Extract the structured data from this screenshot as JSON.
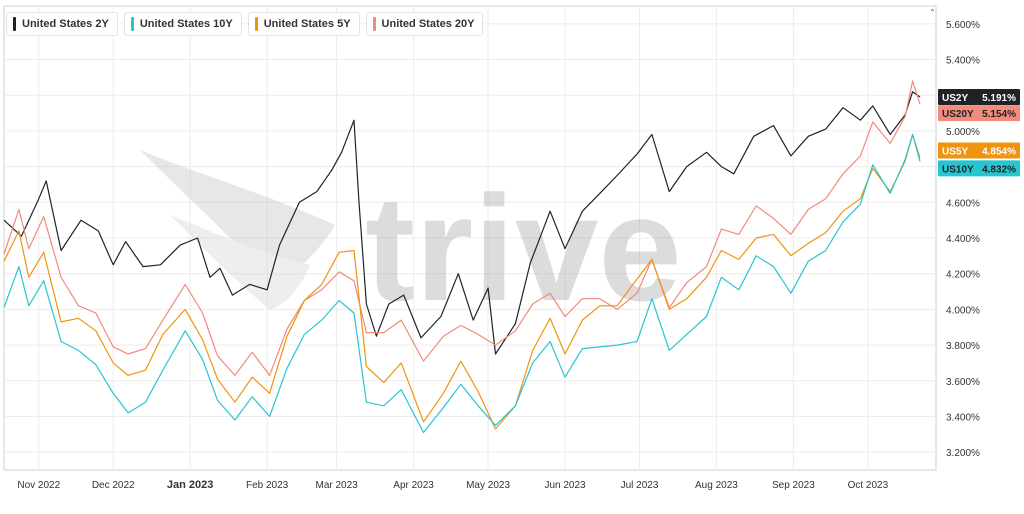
{
  "chart_data": {
    "type": "line",
    "ylim": [
      3.1,
      5.7
    ],
    "y_ticks": [
      "3.200%",
      "3.400%",
      "3.600%",
      "3.800%",
      "4.000%",
      "4.200%",
      "4.400%",
      "4.600%",
      "4.800%",
      "5.000%",
      "5.200%",
      "5.400%",
      "5.600%"
    ],
    "y_tick_values": [
      3.2,
      3.4,
      3.6,
      3.8,
      4.0,
      4.2,
      4.4,
      4.6,
      4.8,
      5.0,
      5.2,
      5.4,
      5.6
    ],
    "x_ticks": [
      "Nov 2022",
      "Dec 2022",
      "Jan 2023",
      "Feb 2023",
      "Mar 2023",
      "Apr 2023",
      "May 2023",
      "Jun 2023",
      "Jul 2023",
      "Aug 2023",
      "Sep 2023",
      "Oct 2023"
    ],
    "x_range": [
      "2022-10-18",
      "2023-10-22"
    ],
    "grid": true,
    "legend_position": "top-left",
    "watermark": "trive",
    "series": [
      {
        "name": "United States 2Y",
        "tag": "US2Y",
        "last_label": "5.191%",
        "color": "#1f2328",
        "points": [
          [
            "2022-10-18",
            4.5
          ],
          [
            "2022-10-25",
            4.41
          ],
          [
            "2022-11-01",
            4.62
          ],
          [
            "2022-11-04",
            4.72
          ],
          [
            "2022-11-10",
            4.33
          ],
          [
            "2022-11-18",
            4.5
          ],
          [
            "2022-11-25",
            4.44
          ],
          [
            "2022-12-01",
            4.25
          ],
          [
            "2022-12-06",
            4.38
          ],
          [
            "2022-12-13",
            4.24
          ],
          [
            "2022-12-20",
            4.25
          ],
          [
            "2022-12-28",
            4.36
          ],
          [
            "2023-01-04",
            4.4
          ],
          [
            "2023-01-09",
            4.18
          ],
          [
            "2023-01-13",
            4.23
          ],
          [
            "2023-01-18",
            4.08
          ],
          [
            "2023-01-25",
            4.14
          ],
          [
            "2023-02-01",
            4.11
          ],
          [
            "2023-02-06",
            4.36
          ],
          [
            "2023-02-14",
            4.6
          ],
          [
            "2023-02-21",
            4.66
          ],
          [
            "2023-02-27",
            4.78
          ],
          [
            "2023-03-03",
            4.88
          ],
          [
            "2023-03-08",
            5.06
          ],
          [
            "2023-03-10",
            4.6
          ],
          [
            "2023-03-13",
            4.03
          ],
          [
            "2023-03-17",
            3.85
          ],
          [
            "2023-03-22",
            4.03
          ],
          [
            "2023-03-28",
            4.08
          ],
          [
            "2023-04-04",
            3.84
          ],
          [
            "2023-04-12",
            3.96
          ],
          [
            "2023-04-19",
            4.2
          ],
          [
            "2023-04-25",
            3.94
          ],
          [
            "2023-05-01",
            4.12
          ],
          [
            "2023-05-04",
            3.75
          ],
          [
            "2023-05-12",
            3.92
          ],
          [
            "2023-05-18",
            4.26
          ],
          [
            "2023-05-26",
            4.55
          ],
          [
            "2023-06-01",
            4.34
          ],
          [
            "2023-06-08",
            4.55
          ],
          [
            "2023-06-15",
            4.65
          ],
          [
            "2023-06-22",
            4.75
          ],
          [
            "2023-06-30",
            4.87
          ],
          [
            "2023-07-06",
            4.98
          ],
          [
            "2023-07-13",
            4.66
          ],
          [
            "2023-07-20",
            4.8
          ],
          [
            "2023-07-28",
            4.88
          ],
          [
            "2023-08-03",
            4.8
          ],
          [
            "2023-08-08",
            4.76
          ],
          [
            "2023-08-16",
            4.97
          ],
          [
            "2023-08-24",
            5.03
          ],
          [
            "2023-08-31",
            4.86
          ],
          [
            "2023-09-07",
            4.97
          ],
          [
            "2023-09-14",
            5.01
          ],
          [
            "2023-09-21",
            5.13
          ],
          [
            "2023-09-28",
            5.06
          ],
          [
            "2023-10-03",
            5.14
          ],
          [
            "2023-10-10",
            4.98
          ],
          [
            "2023-10-16",
            5.09
          ],
          [
            "2023-10-19",
            5.22
          ],
          [
            "2023-10-22",
            5.19
          ]
        ]
      },
      {
        "name": "United States 10Y",
        "tag": "US10Y",
        "last_label": "4.832%",
        "color": "#26c6d0",
        "points": [
          [
            "2022-10-18",
            4.01
          ],
          [
            "2022-10-24",
            4.24
          ],
          [
            "2022-10-28",
            4.02
          ],
          [
            "2022-11-03",
            4.16
          ],
          [
            "2022-11-10",
            3.82
          ],
          [
            "2022-11-17",
            3.77
          ],
          [
            "2022-11-24",
            3.69
          ],
          [
            "2022-12-01",
            3.53
          ],
          [
            "2022-12-07",
            3.42
          ],
          [
            "2022-12-14",
            3.48
          ],
          [
            "2022-12-21",
            3.66
          ],
          [
            "2022-12-30",
            3.88
          ],
          [
            "2023-01-06",
            3.72
          ],
          [
            "2023-01-12",
            3.49
          ],
          [
            "2023-01-19",
            3.38
          ],
          [
            "2023-01-26",
            3.51
          ],
          [
            "2023-02-02",
            3.4
          ],
          [
            "2023-02-09",
            3.67
          ],
          [
            "2023-02-16",
            3.86
          ],
          [
            "2023-02-23",
            3.94
          ],
          [
            "2023-03-02",
            4.05
          ],
          [
            "2023-03-08",
            3.98
          ],
          [
            "2023-03-13",
            3.48
          ],
          [
            "2023-03-20",
            3.46
          ],
          [
            "2023-03-27",
            3.55
          ],
          [
            "2023-04-05",
            3.31
          ],
          [
            "2023-04-13",
            3.45
          ],
          [
            "2023-04-20",
            3.58
          ],
          [
            "2023-04-27",
            3.46
          ],
          [
            "2023-05-04",
            3.35
          ],
          [
            "2023-05-12",
            3.46
          ],
          [
            "2023-05-19",
            3.7
          ],
          [
            "2023-05-26",
            3.82
          ],
          [
            "2023-06-01",
            3.62
          ],
          [
            "2023-06-08",
            3.78
          ],
          [
            "2023-06-15",
            3.79
          ],
          [
            "2023-06-22",
            3.8
          ],
          [
            "2023-06-30",
            3.82
          ],
          [
            "2023-07-06",
            4.06
          ],
          [
            "2023-07-13",
            3.77
          ],
          [
            "2023-07-20",
            3.86
          ],
          [
            "2023-07-28",
            3.96
          ],
          [
            "2023-08-03",
            4.18
          ],
          [
            "2023-08-10",
            4.11
          ],
          [
            "2023-08-17",
            4.3
          ],
          [
            "2023-08-24",
            4.24
          ],
          [
            "2023-08-31",
            4.09
          ],
          [
            "2023-09-07",
            4.27
          ],
          [
            "2023-09-14",
            4.33
          ],
          [
            "2023-09-21",
            4.49
          ],
          [
            "2023-09-28",
            4.59
          ],
          [
            "2023-10-03",
            4.81
          ],
          [
            "2023-10-10",
            4.65
          ],
          [
            "2023-10-16",
            4.84
          ],
          [
            "2023-10-19",
            4.98
          ],
          [
            "2023-10-22",
            4.83
          ]
        ]
      },
      {
        "name": "United States 5Y",
        "tag": "US5Y",
        "last_label": "4.854%",
        "color": "#ef9410",
        "points": [
          [
            "2022-10-18",
            4.27
          ],
          [
            "2022-10-24",
            4.44
          ],
          [
            "2022-10-28",
            4.18
          ],
          [
            "2022-11-03",
            4.32
          ],
          [
            "2022-11-10",
            3.93
          ],
          [
            "2022-11-17",
            3.95
          ],
          [
            "2022-11-24",
            3.88
          ],
          [
            "2022-12-01",
            3.7
          ],
          [
            "2022-12-07",
            3.63
          ],
          [
            "2022-12-14",
            3.66
          ],
          [
            "2022-12-21",
            3.86
          ],
          [
            "2022-12-30",
            4.0
          ],
          [
            "2023-01-06",
            3.83
          ],
          [
            "2023-01-12",
            3.61
          ],
          [
            "2023-01-19",
            3.48
          ],
          [
            "2023-01-26",
            3.62
          ],
          [
            "2023-02-02",
            3.53
          ],
          [
            "2023-02-09",
            3.85
          ],
          [
            "2023-02-16",
            4.05
          ],
          [
            "2023-02-23",
            4.14
          ],
          [
            "2023-03-02",
            4.32
          ],
          [
            "2023-03-08",
            4.33
          ],
          [
            "2023-03-13",
            3.68
          ],
          [
            "2023-03-20",
            3.59
          ],
          [
            "2023-03-27",
            3.7
          ],
          [
            "2023-04-05",
            3.37
          ],
          [
            "2023-04-13",
            3.53
          ],
          [
            "2023-04-20",
            3.71
          ],
          [
            "2023-04-27",
            3.54
          ],
          [
            "2023-05-04",
            3.33
          ],
          [
            "2023-05-12",
            3.46
          ],
          [
            "2023-05-19",
            3.77
          ],
          [
            "2023-05-26",
            3.95
          ],
          [
            "2023-06-01",
            3.75
          ],
          [
            "2023-06-08",
            3.94
          ],
          [
            "2023-06-15",
            4.02
          ],
          [
            "2023-06-22",
            4.02
          ],
          [
            "2023-06-30",
            4.17
          ],
          [
            "2023-07-06",
            4.28
          ],
          [
            "2023-07-13",
            4.0
          ],
          [
            "2023-07-20",
            4.06
          ],
          [
            "2023-07-28",
            4.18
          ],
          [
            "2023-08-03",
            4.33
          ],
          [
            "2023-08-10",
            4.28
          ],
          [
            "2023-08-17",
            4.4
          ],
          [
            "2023-08-24",
            4.42
          ],
          [
            "2023-08-31",
            4.3
          ],
          [
            "2023-09-07",
            4.37
          ],
          [
            "2023-09-14",
            4.43
          ],
          [
            "2023-09-21",
            4.55
          ],
          [
            "2023-09-28",
            4.62
          ],
          [
            "2023-10-03",
            4.79
          ],
          [
            "2023-10-10",
            4.66
          ],
          [
            "2023-10-16",
            4.83
          ],
          [
            "2023-10-19",
            4.98
          ],
          [
            "2023-10-22",
            4.85
          ]
        ]
      },
      {
        "name": "United States 20Y",
        "tag": "US20Y",
        "last_label": "5.154%",
        "color": "#f28b7b",
        "points": [
          [
            "2022-10-18",
            4.31
          ],
          [
            "2022-10-24",
            4.56
          ],
          [
            "2022-10-28",
            4.34
          ],
          [
            "2022-11-03",
            4.52
          ],
          [
            "2022-11-10",
            4.18
          ],
          [
            "2022-11-17",
            4.02
          ],
          [
            "2022-11-24",
            3.98
          ],
          [
            "2022-12-01",
            3.79
          ],
          [
            "2022-12-07",
            3.75
          ],
          [
            "2022-12-14",
            3.78
          ],
          [
            "2022-12-21",
            3.94
          ],
          [
            "2022-12-30",
            4.14
          ],
          [
            "2023-01-06",
            3.98
          ],
          [
            "2023-01-12",
            3.74
          ],
          [
            "2023-01-19",
            3.63
          ],
          [
            "2023-01-26",
            3.76
          ],
          [
            "2023-02-02",
            3.63
          ],
          [
            "2023-02-09",
            3.89
          ],
          [
            "2023-02-16",
            4.05
          ],
          [
            "2023-02-23",
            4.11
          ],
          [
            "2023-03-02",
            4.21
          ],
          [
            "2023-03-08",
            4.16
          ],
          [
            "2023-03-13",
            3.87
          ],
          [
            "2023-03-20",
            3.87
          ],
          [
            "2023-03-27",
            3.94
          ],
          [
            "2023-04-05",
            3.71
          ],
          [
            "2023-04-13",
            3.85
          ],
          [
            "2023-04-20",
            3.91
          ],
          [
            "2023-04-27",
            3.86
          ],
          [
            "2023-05-04",
            3.8
          ],
          [
            "2023-05-12",
            3.88
          ],
          [
            "2023-05-19",
            4.03
          ],
          [
            "2023-05-26",
            4.09
          ],
          [
            "2023-06-01",
            3.96
          ],
          [
            "2023-06-08",
            4.06
          ],
          [
            "2023-06-15",
            4.06
          ],
          [
            "2023-06-22",
            4.0
          ],
          [
            "2023-06-30",
            4.09
          ],
          [
            "2023-07-06",
            4.28
          ],
          [
            "2023-07-13",
            4.01
          ],
          [
            "2023-07-20",
            4.15
          ],
          [
            "2023-07-28",
            4.24
          ],
          [
            "2023-08-03",
            4.45
          ],
          [
            "2023-08-10",
            4.42
          ],
          [
            "2023-08-17",
            4.58
          ],
          [
            "2023-08-24",
            4.51
          ],
          [
            "2023-08-31",
            4.42
          ],
          [
            "2023-09-07",
            4.56
          ],
          [
            "2023-09-14",
            4.62
          ],
          [
            "2023-09-21",
            4.76
          ],
          [
            "2023-09-28",
            4.86
          ],
          [
            "2023-10-03",
            5.05
          ],
          [
            "2023-10-10",
            4.93
          ],
          [
            "2023-10-16",
            5.08
          ],
          [
            "2023-10-19",
            5.28
          ],
          [
            "2023-10-22",
            5.15
          ]
        ]
      }
    ],
    "price_tags": [
      {
        "tag": "US2Y",
        "value_label": "5.191%",
        "bg": "#1f2328",
        "fg": "#ffffff",
        "level": 5.19
      },
      {
        "tag": "US20Y",
        "value_label": "5.154%",
        "bg": "#f28b7b",
        "fg": "#1f2328",
        "level": 5.1
      },
      {
        "tag": "US5Y",
        "value_label": "4.854%",
        "bg": "#ef9410",
        "fg": "#ffffff",
        "level": 4.89
      },
      {
        "tag": "US10Y",
        "value_label": "4.832%",
        "bg": "#26c6d0",
        "fg": "#1f2328",
        "level": 4.79
      }
    ]
  }
}
